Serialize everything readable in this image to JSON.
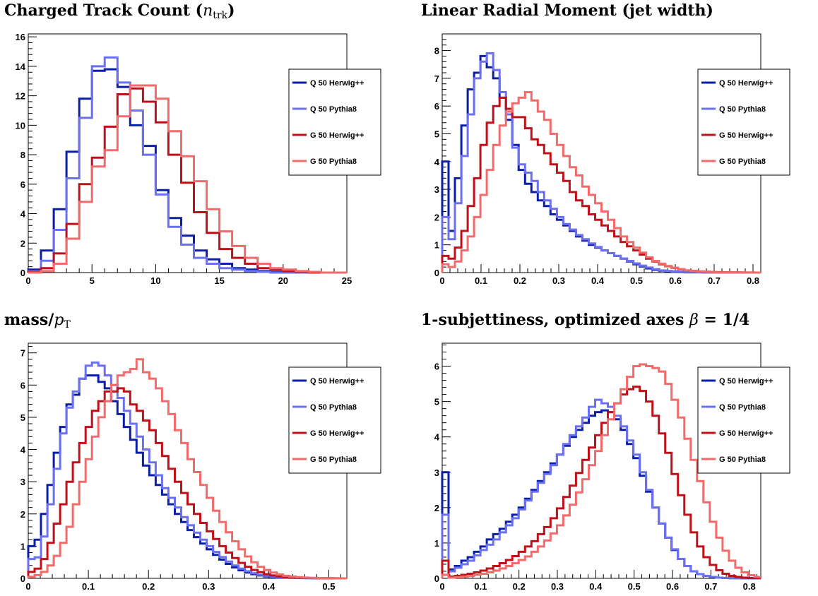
{
  "colors": {
    "q_herwig": "#0b1ea8",
    "q_pythia": "#6b70f0",
    "g_herwig": "#c0111a",
    "g_pythia": "#f26a6a"
  },
  "legend": [
    "Q 50 Herwig++",
    "Q 50 Pythia8",
    "G 50 Herwig++",
    "G 50 Pythia8"
  ],
  "titles": {
    "p0": {
      "pre": "Charged Track Count (",
      "math": "n",
      "sub": "trk",
      "post": ")"
    },
    "p1": {
      "pre": "Linear Radial Moment (jet width)",
      "math": "",
      "sub": "",
      "post": ""
    },
    "p2": {
      "pre": "mass/",
      "math": "p",
      "sub": "T",
      "post": ""
    },
    "p3": {
      "pre": "1-subjettiness, optimized axes ",
      "math": "β",
      "sub": "",
      "post": " = 1/4"
    }
  },
  "chart_data": [
    {
      "type": "line",
      "title": "Charged Track Count (n_trk)",
      "xlim": [
        0,
        25
      ],
      "ylim": [
        0,
        16.2
      ],
      "xticks": [
        0,
        5,
        10,
        15,
        20,
        25
      ],
      "yticks": [
        0,
        2,
        4,
        6,
        8,
        10,
        12,
        14,
        16
      ],
      "bin_edges": [
        0,
        1,
        2,
        3,
        4,
        5,
        6,
        7,
        8,
        9,
        10,
        11,
        12,
        13,
        14,
        15,
        16,
        17,
        18,
        19,
        20,
        21,
        22,
        23,
        24,
        25
      ],
      "series": [
        {
          "name": "Q 50 Herwig++",
          "values": [
            0.2,
            1.5,
            4.3,
            8.2,
            11.8,
            13.7,
            13.8,
            12.6,
            10.0,
            8.6,
            5.6,
            3.7,
            2.5,
            1.5,
            0.9,
            0.6,
            0.3,
            0.2,
            0.1,
            0.05,
            0,
            0,
            0,
            0,
            0
          ]
        },
        {
          "name": "Q 50 Pythia8",
          "values": [
            0.1,
            0.8,
            2.9,
            6.4,
            10.5,
            14.0,
            14.6,
            12.9,
            11.0,
            8.0,
            5.3,
            3.1,
            1.9,
            1.0,
            0.6,
            0.3,
            0.2,
            0.1,
            0.05,
            0,
            0,
            0,
            0,
            0,
            0
          ]
        },
        {
          "name": "G 50 Herwig++",
          "values": [
            0.05,
            0.3,
            1.3,
            3.3,
            6.0,
            7.8,
            9.9,
            12.1,
            12.5,
            11.6,
            10.2,
            8.0,
            6.1,
            4.1,
            2.7,
            1.6,
            1.0,
            0.6,
            0.3,
            0.2,
            0.1,
            0.05,
            0,
            0,
            0
          ]
        },
        {
          "name": "G 50 Pythia8",
          "values": [
            0,
            0.1,
            0.6,
            2.3,
            4.8,
            7.2,
            8.3,
            10.6,
            12.7,
            12.7,
            11.8,
            9.6,
            7.9,
            6.2,
            4.3,
            2.8,
            1.8,
            1.0,
            0.6,
            0.3,
            0.2,
            0.1,
            0.05,
            0,
            0
          ]
        }
      ]
    },
    {
      "type": "line",
      "title": "Linear Radial Moment (jet width)",
      "xlim": [
        0,
        0.82
      ],
      "ylim": [
        0,
        8.6
      ],
      "xticks": [
        0,
        0.1,
        0.2,
        0.3,
        0.4,
        0.5,
        0.6,
        0.7,
        0.8
      ],
      "yticks": [
        0,
        1,
        2,
        3,
        4,
        5,
        6,
        7,
        8
      ],
      "bin_width": 0.0164,
      "series": [
        {
          "name": "Q 50 Herwig++",
          "values": [
            4.0,
            1.5,
            3.4,
            5.3,
            6.6,
            7.2,
            7.8,
            7.4,
            7.0,
            6.3,
            5.5,
            4.6,
            3.7,
            3.2,
            2.9,
            2.6,
            2.4,
            2.1,
            1.9,
            1.7,
            1.5,
            1.3,
            1.15,
            1.0,
            0.9,
            0.8,
            0.7,
            0.6,
            0.5,
            0.4,
            0.3,
            0.22,
            0.15,
            0.1,
            0.07,
            0.05,
            0.03,
            0.02,
            0.01,
            0.01,
            0.01,
            0.005,
            0.005,
            0.003,
            0.002,
            0.001,
            0.001,
            0.001,
            0.0,
            0.0
          ]
        },
        {
          "name": "Q 50 Pythia8",
          "values": [
            2.0,
            1.2,
            2.5,
            4.2,
            5.7,
            7.0,
            7.6,
            7.9,
            7.3,
            6.5,
            5.7,
            4.5,
            3.9,
            3.6,
            3.3,
            2.9,
            2.6,
            2.3,
            2.0,
            1.75,
            1.55,
            1.35,
            1.2,
            1.05,
            0.92,
            0.8,
            0.7,
            0.6,
            0.5,
            0.42,
            0.33,
            0.25,
            0.18,
            0.12,
            0.08,
            0.06,
            0.04,
            0.03,
            0.02,
            0.02,
            0.01,
            0.01,
            0.005,
            0.004,
            0.003,
            0.002,
            0.001,
            0.001,
            0.0,
            0.0
          ]
        },
        {
          "name": "G 50 Herwig++",
          "values": [
            0.6,
            0.5,
            0.9,
            1.5,
            2.4,
            3.4,
            4.6,
            5.4,
            6.0,
            6.3,
            5.9,
            5.6,
            5.6,
            5.2,
            4.8,
            4.6,
            4.3,
            3.9,
            3.6,
            3.3,
            2.9,
            2.6,
            2.4,
            2.1,
            1.9,
            1.7,
            1.5,
            1.3,
            1.1,
            0.95,
            0.8,
            0.65,
            0.5,
            0.4,
            0.3,
            0.23,
            0.17,
            0.12,
            0.08,
            0.06,
            0.04,
            0.03,
            0.02,
            0.015,
            0.01,
            0.007,
            0.005,
            0.003,
            0.002,
            0.001
          ]
        },
        {
          "name": "G 50 Pythia8",
          "values": [
            0.3,
            0.2,
            0.4,
            0.8,
            1.3,
            2.0,
            2.8,
            3.7,
            4.6,
            5.3,
            5.8,
            6.1,
            6.3,
            6.5,
            6.2,
            5.8,
            5.5,
            5.0,
            4.6,
            4.2,
            3.8,
            3.5,
            3.1,
            2.8,
            2.5,
            2.2,
            1.9,
            1.6,
            1.3,
            1.1,
            0.9,
            0.72,
            0.55,
            0.42,
            0.32,
            0.24,
            0.17,
            0.12,
            0.08,
            0.06,
            0.04,
            0.03,
            0.02,
            0.01,
            0.01,
            0.005,
            0.003,
            0.002,
            0.001,
            0.001
          ]
        }
      ]
    },
    {
      "type": "line",
      "title": "mass/p_T",
      "xlim": [
        0,
        0.53
      ],
      "ylim": [
        0,
        7.3
      ],
      "xticks": [
        0,
        0.1,
        0.2,
        0.3,
        0.4,
        0.5
      ],
      "yticks": [
        0,
        1,
        2,
        3,
        4,
        5,
        6,
        7
      ],
      "bin_width": 0.0106,
      "series": [
        {
          "name": "Q 50 Herwig++",
          "values": [
            1.0,
            1.2,
            2.0,
            2.9,
            3.9,
            4.7,
            5.4,
            5.7,
            6.2,
            6.3,
            6.3,
            6.1,
            5.9,
            5.5,
            5.1,
            4.7,
            4.3,
            3.9,
            3.5,
            3.2,
            2.9,
            2.6,
            2.3,
            2.0,
            1.75,
            1.5,
            1.28,
            1.08,
            0.9,
            0.73,
            0.58,
            0.45,
            0.34,
            0.25,
            0.18,
            0.13,
            0.09,
            0.06,
            0.04,
            0.03,
            0.02,
            0.015,
            0.01,
            0.008,
            0.006,
            0.004,
            0.003,
            0.002,
            0.001,
            0.001
          ]
        },
        {
          "name": "Q 50 Pythia8",
          "values": [
            0.6,
            0.65,
            1.3,
            2.3,
            3.4,
            4.5,
            5.3,
            5.8,
            6.2,
            6.6,
            6.7,
            6.6,
            6.3,
            6.0,
            5.6,
            5.2,
            4.8,
            4.4,
            4.0,
            3.6,
            3.2,
            2.8,
            2.5,
            2.2,
            1.9,
            1.65,
            1.42,
            1.2,
            1.0,
            0.82,
            0.66,
            0.52,
            0.4,
            0.3,
            0.22,
            0.16,
            0.11,
            0.08,
            0.05,
            0.035,
            0.025,
            0.018,
            0.012,
            0.009,
            0.006,
            0.004,
            0.003,
            0.002,
            0.001,
            0.001
          ]
        },
        {
          "name": "G 50 Herwig++",
          "values": [
            0.2,
            0.3,
            0.6,
            1.1,
            1.7,
            2.3,
            3.0,
            3.6,
            4.2,
            4.7,
            5.2,
            5.5,
            5.8,
            5.8,
            5.9,
            5.8,
            5.4,
            5.2,
            4.9,
            4.6,
            4.2,
            3.8,
            3.4,
            3.0,
            2.65,
            2.3,
            2.0,
            1.72,
            1.46,
            1.22,
            1.0,
            0.8,
            0.63,
            0.48,
            0.36,
            0.26,
            0.19,
            0.13,
            0.09,
            0.06,
            0.04,
            0.03,
            0.02,
            0.014,
            0.01,
            0.007,
            0.005,
            0.003,
            0.002,
            0.001
          ]
        },
        {
          "name": "G 50 Pythia8",
          "values": [
            0.05,
            0.1,
            0.2,
            0.4,
            0.7,
            1.1,
            1.6,
            2.3,
            3.0,
            3.7,
            4.4,
            5.0,
            5.5,
            6.0,
            6.3,
            6.4,
            6.5,
            6.8,
            6.4,
            6.2,
            5.9,
            5.5,
            5.1,
            4.6,
            4.2,
            3.7,
            3.3,
            2.9,
            2.5,
            2.1,
            1.75,
            1.43,
            1.15,
            0.9,
            0.68,
            0.5,
            0.36,
            0.26,
            0.18,
            0.12,
            0.08,
            0.055,
            0.037,
            0.025,
            0.016,
            0.01,
            0.007,
            0.004,
            0.002,
            0.001
          ]
        }
      ]
    },
    {
      "type": "line",
      "title": "1-subjettiness, optimized axes β = 1/4",
      "xlim": [
        0,
        0.83
      ],
      "ylim": [
        0,
        6.65
      ],
      "xticks": [
        0,
        0.1,
        0.2,
        0.3,
        0.4,
        0.5,
        0.6,
        0.7,
        0.8
      ],
      "yticks": [
        0,
        1,
        2,
        3,
        4,
        5,
        6
      ],
      "bin_width": 0.0166,
      "series": [
        {
          "name": "Q 50 Herwig++",
          "values": [
            3.0,
            0.25,
            0.35,
            0.5,
            0.6,
            0.75,
            0.9,
            1.1,
            1.25,
            1.4,
            1.6,
            1.8,
            2.0,
            2.25,
            2.5,
            2.75,
            3.0,
            3.25,
            3.5,
            3.75,
            4.0,
            4.2,
            4.4,
            4.6,
            4.7,
            4.75,
            4.7,
            4.5,
            4.2,
            3.8,
            3.4,
            2.9,
            2.45,
            2.0,
            1.55,
            1.15,
            0.8,
            0.55,
            0.35,
            0.2,
            0.12,
            0.07,
            0.04,
            0.02,
            0.01,
            0.005,
            0.003,
            0.002,
            0.001,
            0.001
          ]
        },
        {
          "name": "Q 50 Pythia8",
          "values": [
            1.8,
            0.2,
            0.3,
            0.4,
            0.5,
            0.65,
            0.8,
            0.95,
            1.1,
            1.3,
            1.5,
            1.7,
            1.95,
            2.2,
            2.45,
            2.7,
            2.95,
            3.2,
            3.5,
            3.8,
            4.05,
            4.3,
            4.55,
            4.85,
            5.05,
            4.95,
            4.85,
            4.6,
            4.3,
            3.9,
            3.5,
            3.0,
            2.5,
            2.0,
            1.55,
            1.15,
            0.82,
            0.55,
            0.35,
            0.2,
            0.12,
            0.07,
            0.04,
            0.02,
            0.01,
            0.005,
            0.003,
            0.002,
            0.001,
            0.001
          ]
        },
        {
          "name": "G 50 Herwig++",
          "values": [
            0.5,
            0.05,
            0.07,
            0.1,
            0.13,
            0.17,
            0.22,
            0.28,
            0.35,
            0.43,
            0.52,
            0.63,
            0.75,
            0.9,
            1.05,
            1.25,
            1.45,
            1.7,
            1.98,
            2.3,
            2.62,
            2.98,
            3.35,
            3.7,
            4.05,
            4.4,
            4.7,
            4.95,
            5.2,
            5.35,
            5.42,
            5.3,
            5.0,
            4.6,
            4.1,
            3.55,
            2.95,
            2.35,
            1.8,
            1.3,
            0.9,
            0.6,
            0.38,
            0.23,
            0.13,
            0.07,
            0.04,
            0.02,
            0.01,
            0.005
          ]
        },
        {
          "name": "G 50 Pythia8",
          "values": [
            0.1,
            0.02,
            0.03,
            0.05,
            0.07,
            0.1,
            0.13,
            0.17,
            0.22,
            0.28,
            0.35,
            0.43,
            0.52,
            0.62,
            0.75,
            0.9,
            1.07,
            1.27,
            1.5,
            1.78,
            2.08,
            2.43,
            2.8,
            3.2,
            3.6,
            4.05,
            4.5,
            4.95,
            5.35,
            5.7,
            6.0,
            6.05,
            6.0,
            5.95,
            5.85,
            5.5,
            5.05,
            4.55,
            3.95,
            3.35,
            2.75,
            2.15,
            1.6,
            1.15,
            0.78,
            0.5,
            0.3,
            0.17,
            0.09,
            0.04
          ]
        }
      ]
    }
  ]
}
